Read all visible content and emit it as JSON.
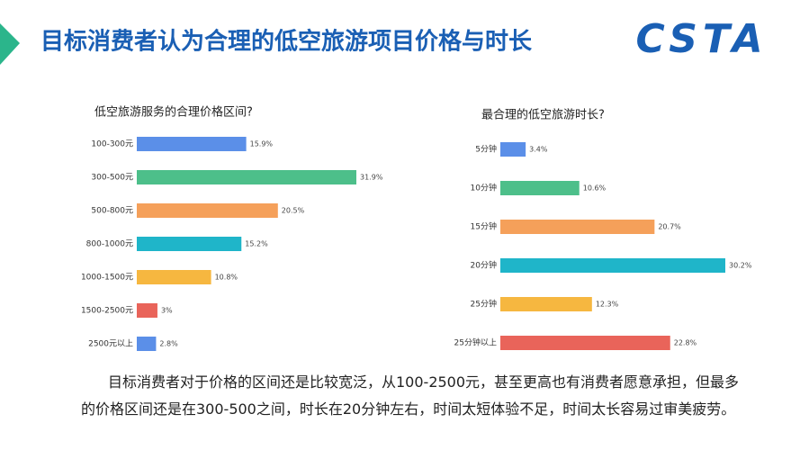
{
  "header": {
    "title": "目标消费者认为合理的低空旅游项目价格与时长",
    "logo": "CSTA"
  },
  "chart_data": [
    {
      "type": "bar",
      "orientation": "horizontal",
      "title": "低空旅游服务的合理价格区间?",
      "categories": [
        "100-300元",
        "300-500元",
        "500-800元",
        "800-1000元",
        "1000-1500元",
        "1500-2500元",
        "2500元以上"
      ],
      "values": [
        15.9,
        31.9,
        20.5,
        15.2,
        10.8,
        3,
        2.8
      ],
      "value_labels": [
        "15.9%",
        "31.9%",
        "20.5%",
        "15.2%",
        "10.8%",
        "3%",
        "2.8%"
      ],
      "colors": [
        "#5b8fe8",
        "#4dbf8a",
        "#f5a05a",
        "#1fb5c9",
        "#f6b740",
        "#e9645a",
        "#5b8fe8"
      ]
    },
    {
      "type": "bar",
      "orientation": "horizontal",
      "title": "最合理的低空旅游时长?",
      "categories": [
        "5分钟",
        "10分钟",
        "15分钟",
        "20分钟",
        "25分钟",
        "25分钟以上"
      ],
      "values": [
        3.4,
        10.6,
        20.7,
        30.2,
        12.3,
        22.8
      ],
      "value_labels": [
        "3.4%",
        "10.6%",
        "20.7%",
        "30.2%",
        "12.3%",
        "22.8%"
      ],
      "colors": [
        "#5b8fe8",
        "#4dbf8a",
        "#f5a05a",
        "#1fb5c9",
        "#f6b740",
        "#e9645a"
      ]
    }
  ],
  "paragraph": "目标消费者对于价格的区间还是比较宽泛，从100-2500元，甚至更高也有消费者愿意承担，但最多的价格区间还是在300-500之间，时长在20分钟左右，时间太短体验不足，时间太长容易过审美疲劳。"
}
